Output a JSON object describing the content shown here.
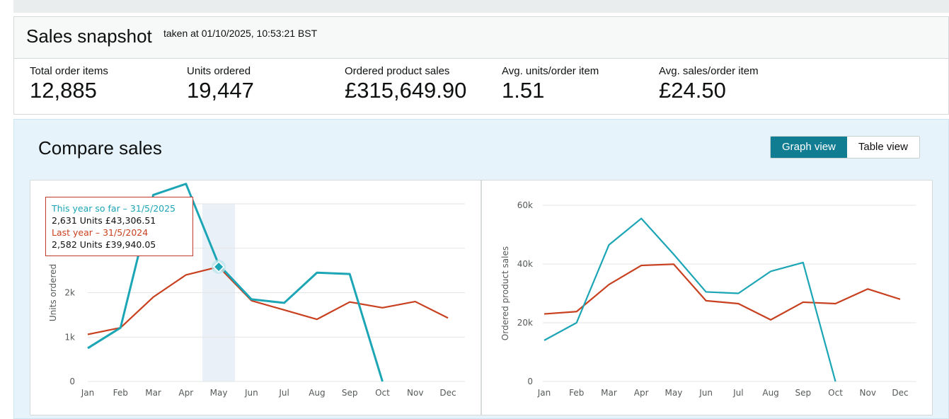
{
  "snapshot": {
    "title": "Sales snapshot",
    "taken": "taken at 01/10/2025, 10:53:21 BST",
    "metrics": [
      {
        "label": "Total order items",
        "value": "12,885"
      },
      {
        "label": "Units ordered",
        "value": "19,447"
      },
      {
        "label": "Ordered product sales",
        "value": "£315,649.90"
      },
      {
        "label": "Avg. units/order item",
        "value": "1.51"
      },
      {
        "label": "Avg. sales/order item",
        "value": "£24.50"
      }
    ]
  },
  "compare": {
    "title": "Compare sales",
    "graph_view_label": "Graph view",
    "table_view_label": "Table view",
    "active_view": "graph"
  },
  "tooltip": {
    "this_year_label": "This year so far – 31/5/2025",
    "this_year_value": "2,631 Units £43,306.51",
    "last_year_label": "Last year – 31/5/2024",
    "last_year_value": "2,582 Units £39,940.05"
  },
  "colors": {
    "this_year": "#1ba5b5",
    "last_year": "#c8401f",
    "accent": "#117d93",
    "highlight_band": "#eaf0f8"
  },
  "chart_data": [
    {
      "type": "line",
      "categories": [
        "Jan",
        "Feb",
        "Mar",
        "Apr",
        "May",
        "Jun",
        "Jul",
        "Aug",
        "Sep",
        "Oct",
        "Nov",
        "Dec"
      ],
      "ylabel": "Units ordered",
      "ytick_labels": [
        "0",
        "1k",
        "2k"
      ],
      "ylim": [
        0,
        4000
      ],
      "highlight_category": "May",
      "series": [
        {
          "name": "This year so far",
          "color": "#1ba5b5",
          "values": [
            750,
            1210,
            4200,
            4450,
            2631,
            1850,
            1770,
            2450,
            2420,
            0,
            null,
            null
          ]
        },
        {
          "name": "Last year",
          "color": "#c8401f",
          "values": [
            1060,
            1210,
            1900,
            2400,
            2582,
            1820,
            1610,
            1400,
            1790,
            1660,
            1800,
            1430
          ]
        }
      ]
    },
    {
      "type": "line",
      "categories": [
        "Jan",
        "Feb",
        "Mar",
        "Apr",
        "May",
        "Jun",
        "Jul",
        "Aug",
        "Sep",
        "Oct",
        "Nov",
        "Dec"
      ],
      "ylabel": "Ordered product sales",
      "ytick_labels": [
        "0",
        "20k",
        "40k",
        "60k"
      ],
      "ylim": [
        0,
        60000
      ],
      "series": [
        {
          "name": "This year so far",
          "color": "#1ba5b5",
          "values": [
            14000,
            20000,
            46500,
            55500,
            43306.51,
            30500,
            30000,
            37500,
            40500,
            0,
            null,
            null
          ]
        },
        {
          "name": "Last year",
          "color": "#c8401f",
          "values": [
            23000,
            23800,
            33000,
            39500,
            39940.05,
            27500,
            26500,
            21000,
            27000,
            26500,
            31500,
            28000
          ]
        }
      ]
    }
  ]
}
